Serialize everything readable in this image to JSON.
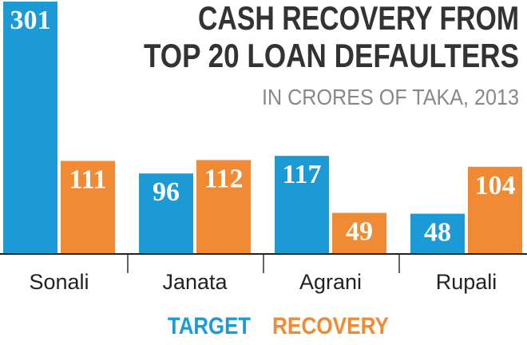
{
  "chart_data": {
    "type": "bar",
    "title": [
      "CASH RECOVERY FROM",
      "TOP 20 LOAN DEFAULTERS"
    ],
    "subtitle": "IN CRORES OF TAKA, 2013",
    "categories": [
      "Sonali",
      "Janata",
      "Agrani",
      "Rupali"
    ],
    "series": [
      {
        "name": "TARGET",
        "color": "#1b9ad6",
        "values": [
          301,
          96,
          117,
          48
        ]
      },
      {
        "name": "RECOVERY",
        "color": "#f08a35",
        "values": [
          111,
          112,
          49,
          104
        ]
      }
    ]
  }
}
